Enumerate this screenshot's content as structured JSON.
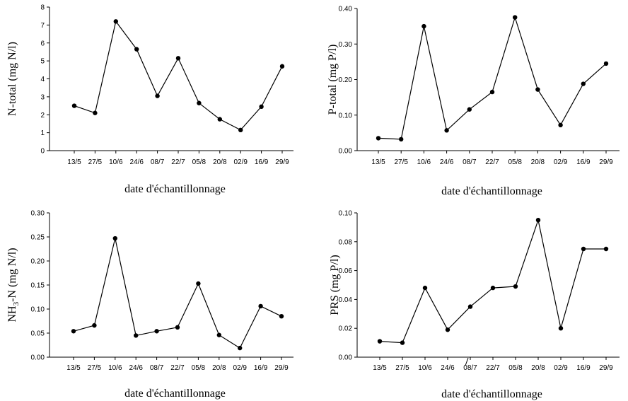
{
  "chart_data": [
    {
      "type": "line",
      "categories": [
        "13/5",
        "27/5",
        "10/6",
        "24/6",
        "08/7",
        "22/7",
        "05/8",
        "20/8",
        "02/9",
        "16/9",
        "29/9"
      ],
      "values": [
        2.5,
        2.1,
        7.2,
        5.65,
        3.05,
        5.15,
        2.65,
        1.75,
        1.15,
        2.45,
        4.7
      ],
      "xlabel": "date d'échantillonnage",
      "ylabel": "N-total  (mg N/l)",
      "ylim": [
        0,
        8
      ],
      "yticks": [
        "0",
        "1",
        "2",
        "3",
        "4",
        "5",
        "6",
        "7",
        "8"
      ]
    },
    {
      "type": "line",
      "categories": [
        "13/5",
        "27/5",
        "10/6",
        "24/6",
        "08/7",
        "22/7",
        "05/8",
        "20/8",
        "02/9",
        "16/9",
        "29/9"
      ],
      "values": [
        0.035,
        0.032,
        0.35,
        0.057,
        0.116,
        0.165,
        0.375,
        0.172,
        0.072,
        0.188,
        0.245
      ],
      "xlabel": "date d'échantillonnage",
      "ylabel": "P-total  (mg P/l)",
      "ylim": [
        0,
        0.4
      ],
      "yticks": [
        "0.00",
        "0.10",
        "0.20",
        "0.30",
        "0.40"
      ]
    },
    {
      "type": "line",
      "categories": [
        "13/5",
        "27/5",
        "10/6",
        "24/6",
        "08/7",
        "22/7",
        "05/8",
        "20/8",
        "02/9",
        "16/9",
        "29/9"
      ],
      "values": [
        0.054,
        0.066,
        0.247,
        0.045,
        0.054,
        0.062,
        0.153,
        0.046,
        0.019,
        0.106,
        0.085
      ],
      "xlabel": "date d'échantillonnage",
      "ylabel": {
        "prefix": "NH",
        "sub": "3",
        "suffix": "-N (mg N/l)"
      },
      "ylim": [
        0,
        0.3
      ],
      "yticks": [
        "0.00",
        "0.05",
        "0.10",
        "0.15",
        "0.20",
        "0.25",
        "0.30"
      ]
    },
    {
      "type": "line",
      "categories": [
        "13/5",
        "27/5",
        "10/6",
        "24/6",
        "08/7",
        "22/7",
        "05/8",
        "20/8",
        "02/9",
        "16/9",
        "29/9"
      ],
      "values": [
        0.011,
        0.01,
        0.048,
        0.019,
        0.035,
        0.048,
        0.049,
        0.095,
        0.02,
        0.075,
        0.075
      ],
      "xlabel": "date d'échantillonnage",
      "ylabel": "PRS  (mg P/l)",
      "ylim": [
        0,
        0.1
      ],
      "yticks": [
        "0.00",
        "0.02",
        "0.04",
        "0.06",
        "0.08",
        "0.10"
      ]
    }
  ]
}
